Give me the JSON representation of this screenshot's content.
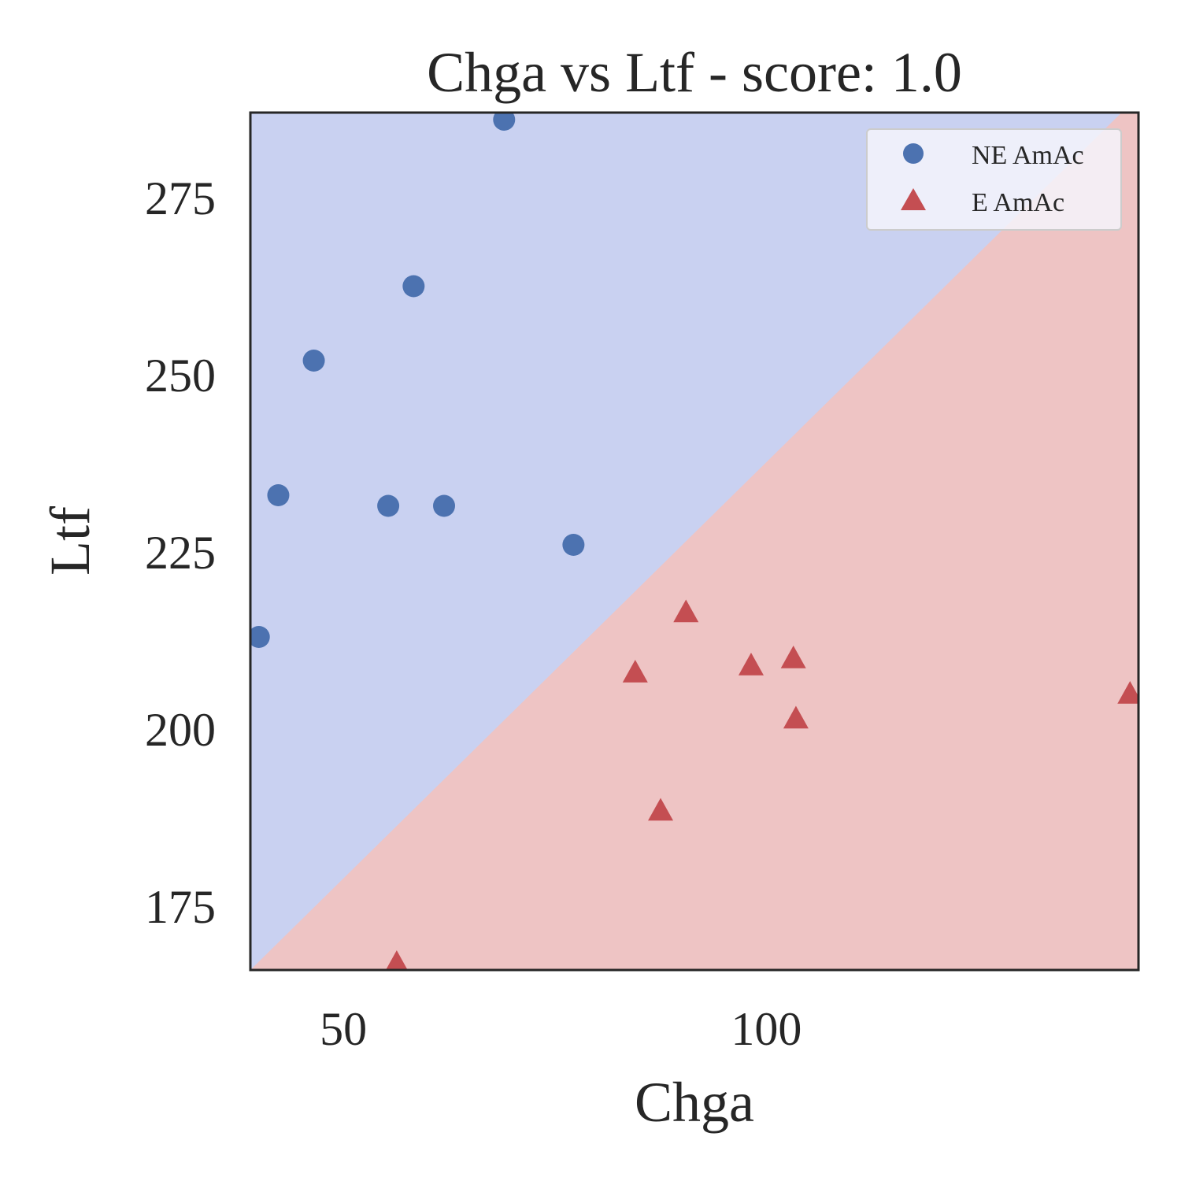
{
  "chart_data": {
    "type": "scatter",
    "title": "Chga vs Ltf - score: 1.0",
    "xlabel": "Chga",
    "ylabel": "Ltf",
    "xlim": [
      39,
      144
    ],
    "ylim": [
      166,
      287
    ],
    "x_ticks": [
      50,
      100
    ],
    "y_ticks": [
      175,
      200,
      225,
      250,
      275
    ],
    "grid": false,
    "legend": "top-right",
    "decision_boundary": {
      "line": [
        [
          39,
          166
        ],
        [
          142,
          287
        ]
      ],
      "above_class": "NE AmAc",
      "below_class": "E AmAc"
    },
    "series": [
      {
        "name": "NE AmAc",
        "marker": "circle",
        "color": "#4c72b0",
        "region_color": "#c9d1f1",
        "points": [
          [
            40,
            213
          ],
          [
            42.3,
            233
          ],
          [
            46.5,
            252
          ],
          [
            55.3,
            231.5
          ],
          [
            58.3,
            262.5
          ],
          [
            61.9,
            231.5
          ],
          [
            69,
            286
          ],
          [
            77.2,
            226
          ]
        ]
      },
      {
        "name": "E AmAc",
        "marker": "triangle",
        "color": "#c44e52",
        "region_color": "#eec4c4",
        "points": [
          [
            56.3,
            167
          ],
          [
            84.5,
            208
          ],
          [
            87.5,
            188.5
          ],
          [
            90.5,
            216.5
          ],
          [
            98.2,
            209
          ],
          [
            103.2,
            210
          ],
          [
            103.5,
            201.5
          ],
          [
            143,
            205
          ]
        ]
      }
    ]
  }
}
